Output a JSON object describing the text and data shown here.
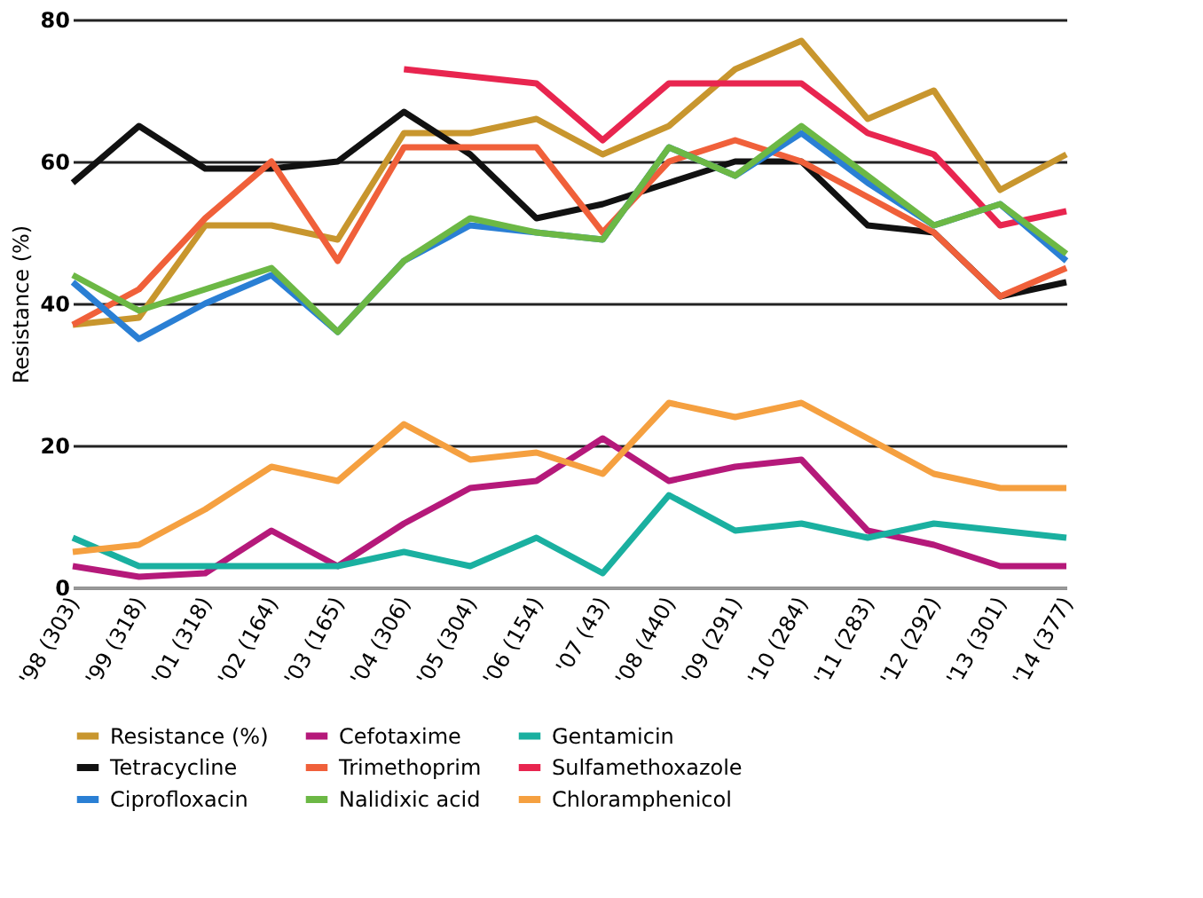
{
  "chart_data": {
    "type": "line",
    "ylabel": "Resistance (%)",
    "categories": [
      "'98 (303)",
      "'99 (318)",
      "'01 (318)",
      "'02 (164)",
      "'03 (165)",
      "'04 (306)",
      "'05 (304)",
      "'06 (154)",
      "'07 (43)",
      "'08 (440)",
      "'09 (291)",
      "'10 (284)",
      "'11 (283)",
      "'12 (292)",
      "'13 (301)",
      "'14 (377)"
    ],
    "ylim": [
      0,
      80
    ],
    "yticks": [
      0,
      20,
      40,
      60,
      80
    ],
    "grid": "y",
    "legend": "bottom",
    "line_style": "solid",
    "marker": "none",
    "series": [
      {
        "name": "Resistance (%)",
        "color": "#c8962e",
        "values": [
          37,
          38,
          51,
          51,
          49,
          64,
          64,
          66,
          61,
          65,
          73,
          77,
          66,
          70,
          56,
          61
        ]
      },
      {
        "name": "Cefotaxime",
        "color": "#b5197a",
        "values": [
          3,
          1.5,
          2,
          8,
          3,
          9,
          14,
          15,
          21,
          15,
          17,
          18,
          8,
          6,
          3,
          3
        ]
      },
      {
        "name": "Gentamicin",
        "color": "#1ab0a0",
        "values": [
          7,
          3,
          3,
          3,
          3,
          5,
          3,
          7,
          2,
          13,
          8,
          9,
          7,
          9,
          8,
          7
        ]
      },
      {
        "name": "Tetracycline",
        "color": "#111111",
        "values": [
          57,
          65,
          59,
          59,
          60,
          67,
          61,
          52,
          54,
          57,
          60,
          60,
          51,
          50,
          41,
          43
        ]
      },
      {
        "name": "Trimethoprim",
        "color": "#f0603a",
        "values": [
          37,
          42,
          52,
          60,
          46,
          62,
          62,
          62,
          50,
          60,
          63,
          60,
          55,
          50,
          41,
          45
        ]
      },
      {
        "name": "Sulfamethoxazole",
        "color": "#e8254f",
        "values": [
          null,
          null,
          null,
          null,
          null,
          73,
          72,
          71,
          63,
          71,
          71,
          71,
          64,
          61,
          51,
          53
        ]
      },
      {
        "name": "Ciprofloxacin",
        "color": "#2a7fd4",
        "values": [
          43,
          35,
          40,
          44,
          36,
          46,
          51,
          50,
          49,
          62,
          58,
          64,
          57,
          51,
          54,
          46
        ]
      },
      {
        "name": "Nalidixic acid",
        "color": "#6cb845",
        "values": [
          44,
          39,
          42,
          45,
          36,
          46,
          52,
          50,
          49,
          62,
          58,
          65,
          58,
          51,
          54,
          47
        ]
      },
      {
        "name": "Chloramphenicol",
        "color": "#f5a040",
        "values": [
          5,
          6,
          11,
          17,
          15,
          23,
          18,
          19,
          16,
          26,
          24,
          26,
          21,
          16,
          14,
          14
        ]
      }
    ]
  }
}
